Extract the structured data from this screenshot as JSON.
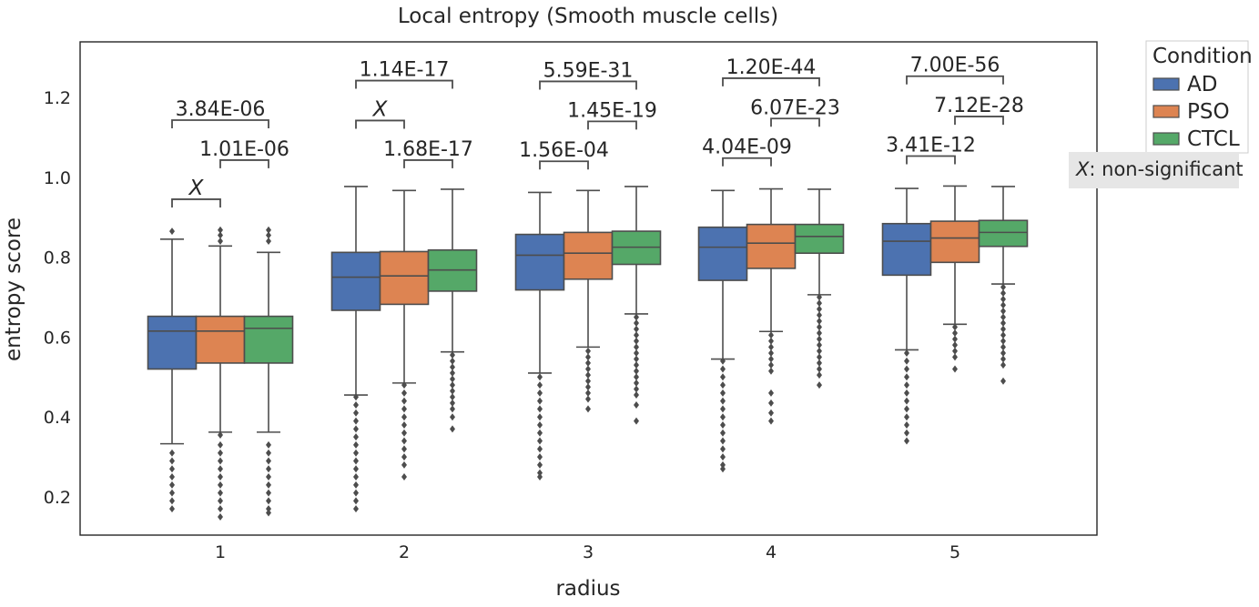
{
  "chart_data": {
    "type": "boxplot",
    "title": "Local entropy (Smooth muscle cells)",
    "xlabel": "radius",
    "ylabel": "entropy score",
    "categories": [
      "1",
      "2",
      "3",
      "4",
      "5"
    ],
    "ylim": [
      0.1,
      1.34
    ],
    "yticks": [
      "0.2",
      "0.4",
      "0.6",
      "0.8",
      "1.0",
      "1.2"
    ],
    "grid": false,
    "legend": {
      "title": "Condition",
      "position": "outside-right"
    },
    "note": {
      "symbol": "X",
      "text": ": non-significant"
    },
    "series": [
      {
        "name": "AD",
        "color": "#4c72b0",
        "boxes": [
          {
            "q1": 0.52,
            "median": 0.615,
            "q3": 0.652,
            "whisker_low": 0.333,
            "whisker_high": 0.845,
            "outliers": [
              0.31,
              0.29,
              0.27,
              0.25,
              0.23,
              0.21,
              0.19,
              0.17,
              0.865
            ]
          },
          {
            "q1": 0.667,
            "median": 0.75,
            "q3": 0.812,
            "whisker_low": 0.455,
            "whisker_high": 0.977,
            "outliers": [
              0.45,
              0.43,
              0.41,
              0.39,
              0.37,
              0.35,
              0.33,
              0.31,
              0.29,
              0.27,
              0.25,
              0.23,
              0.21,
              0.19,
              0.17
            ]
          },
          {
            "q1": 0.718,
            "median": 0.805,
            "q3": 0.857,
            "whisker_low": 0.51,
            "whisker_high": 0.962,
            "outliers": [
              0.5,
              0.48,
              0.46,
              0.44,
              0.42,
              0.4,
              0.38,
              0.36,
              0.34,
              0.32,
              0.3,
              0.28,
              0.26,
              0.25
            ]
          },
          {
            "q1": 0.742,
            "median": 0.825,
            "q3": 0.875,
            "whisker_low": 0.545,
            "whisker_high": 0.967,
            "outliers": [
              0.54,
              0.52,
              0.5,
              0.48,
              0.46,
              0.44,
              0.42,
              0.4,
              0.38,
              0.36,
              0.34,
              0.32,
              0.3,
              0.28,
              0.27
            ]
          },
          {
            "q1": 0.755,
            "median": 0.84,
            "q3": 0.884,
            "whisker_low": 0.568,
            "whisker_high": 0.972,
            "outliers": [
              0.56,
              0.54,
              0.52,
              0.5,
              0.48,
              0.46,
              0.44,
              0.42,
              0.4,
              0.38,
              0.36,
              0.34
            ]
          }
        ]
      },
      {
        "name": "PSO",
        "color": "#dd8452",
        "boxes": [
          {
            "q1": 0.535,
            "median": 0.615,
            "q3": 0.652,
            "whisker_low": 0.362,
            "whisker_high": 0.828,
            "outliers": [
              0.355,
              0.33,
              0.31,
              0.29,
              0.27,
              0.25,
              0.23,
              0.21,
              0.19,
              0.17,
              0.15,
              0.84,
              0.855,
              0.868
            ]
          },
          {
            "q1": 0.682,
            "median": 0.753,
            "q3": 0.814,
            "whisker_low": 0.485,
            "whisker_high": 0.967,
            "outliers": [
              0.48,
              0.46,
              0.44,
              0.42,
              0.4,
              0.38,
              0.36,
              0.34,
              0.32,
              0.3,
              0.28,
              0.25
            ]
          },
          {
            "q1": 0.745,
            "median": 0.81,
            "q3": 0.862,
            "whisker_low": 0.575,
            "whisker_high": 0.967,
            "outliers": [
              0.565,
              0.55,
              0.535,
              0.52,
              0.505,
              0.49,
              0.475,
              0.46,
              0.445,
              0.42
            ]
          },
          {
            "q1": 0.772,
            "median": 0.835,
            "q3": 0.882,
            "whisker_low": 0.614,
            "whisker_high": 0.971,
            "outliers": [
              0.605,
              0.59,
              0.575,
              0.56,
              0.545,
              0.53,
              0.515,
              0.46,
              0.435,
              0.41,
              0.39
            ]
          },
          {
            "q1": 0.787,
            "median": 0.848,
            "q3": 0.89,
            "whisker_low": 0.632,
            "whisker_high": 0.978,
            "outliers": [
              0.625,
              0.61,
              0.595,
              0.58,
              0.565,
              0.55,
              0.52
            ]
          }
        ]
      },
      {
        "name": "CTCL",
        "color": "#55a868",
        "boxes": [
          {
            "q1": 0.535,
            "median": 0.622,
            "q3": 0.652,
            "whisker_low": 0.362,
            "whisker_high": 0.812,
            "outliers": [
              0.33,
              0.31,
              0.29,
              0.27,
              0.25,
              0.23,
              0.21,
              0.19,
              0.17,
              0.16,
              0.84,
              0.855,
              0.868
            ]
          },
          {
            "q1": 0.715,
            "median": 0.768,
            "q3": 0.818,
            "whisker_low": 0.563,
            "whisker_high": 0.97,
            "outliers": [
              0.555,
              0.54,
              0.525,
              0.51,
              0.495,
              0.48,
              0.465,
              0.45,
              0.435,
              0.42,
              0.4,
              0.37
            ]
          },
          {
            "q1": 0.782,
            "median": 0.825,
            "q3": 0.865,
            "whisker_low": 0.658,
            "whisker_high": 0.977,
            "outliers": [
              0.65,
              0.635,
              0.62,
              0.605,
              0.59,
              0.575,
              0.56,
              0.545,
              0.53,
              0.515,
              0.5,
              0.485,
              0.47,
              0.455,
              0.43,
              0.39
            ]
          },
          {
            "q1": 0.81,
            "median": 0.852,
            "q3": 0.882,
            "whisker_low": 0.706,
            "whisker_high": 0.97,
            "outliers": [
              0.7,
              0.685,
              0.67,
              0.655,
              0.64,
              0.625,
              0.61,
              0.595,
              0.58,
              0.565,
              0.55,
              0.535,
              0.52,
              0.505,
              0.48
            ]
          },
          {
            "q1": 0.827,
            "median": 0.862,
            "q3": 0.892,
            "whisker_low": 0.733,
            "whisker_high": 0.977,
            "outliers": [
              0.725,
              0.71,
              0.695,
              0.68,
              0.665,
              0.65,
              0.635,
              0.62,
              0.605,
              0.59,
              0.575,
              0.56,
              0.545,
              0.53,
              0.49
            ]
          }
        ]
      }
    ],
    "annotations": [
      {
        "group": 0,
        "from": 0,
        "to": 1,
        "level": 0.945,
        "label": "X",
        "italic": true
      },
      {
        "group": 0,
        "from": 1,
        "to": 2,
        "level": 1.043,
        "label": "1.01E-06"
      },
      {
        "group": 0,
        "from": 0,
        "to": 2,
        "level": 1.143,
        "label": "3.84E-06"
      },
      {
        "group": 1,
        "from": 1,
        "to": 2,
        "level": 1.043,
        "label": "1.68E-17"
      },
      {
        "group": 1,
        "from": 0,
        "to": 1,
        "level": 1.142,
        "label": "X",
        "italic": true
      },
      {
        "group": 1,
        "from": 0,
        "to": 2,
        "level": 1.242,
        "label": "1.14E-17"
      },
      {
        "group": 2,
        "from": 0,
        "to": 1,
        "level": 1.04,
        "label": "1.56E-04"
      },
      {
        "group": 2,
        "from": 1,
        "to": 2,
        "level": 1.14,
        "label": "1.45E-19"
      },
      {
        "group": 2,
        "from": 0,
        "to": 2,
        "level": 1.24,
        "label": "5.59E-31"
      },
      {
        "group": 3,
        "from": 0,
        "to": 1,
        "level": 1.048,
        "label": "4.04E-09"
      },
      {
        "group": 3,
        "from": 1,
        "to": 2,
        "level": 1.147,
        "label": "6.07E-23"
      },
      {
        "group": 3,
        "from": 0,
        "to": 2,
        "level": 1.248,
        "label": "1.20E-44"
      },
      {
        "group": 4,
        "from": 0,
        "to": 1,
        "level": 1.053,
        "label": "3.41E-12"
      },
      {
        "group": 4,
        "from": 1,
        "to": 2,
        "level": 1.152,
        "label": "7.12E-28"
      },
      {
        "group": 4,
        "from": 0,
        "to": 2,
        "level": 1.253,
        "label": "7.00E-56"
      }
    ]
  }
}
